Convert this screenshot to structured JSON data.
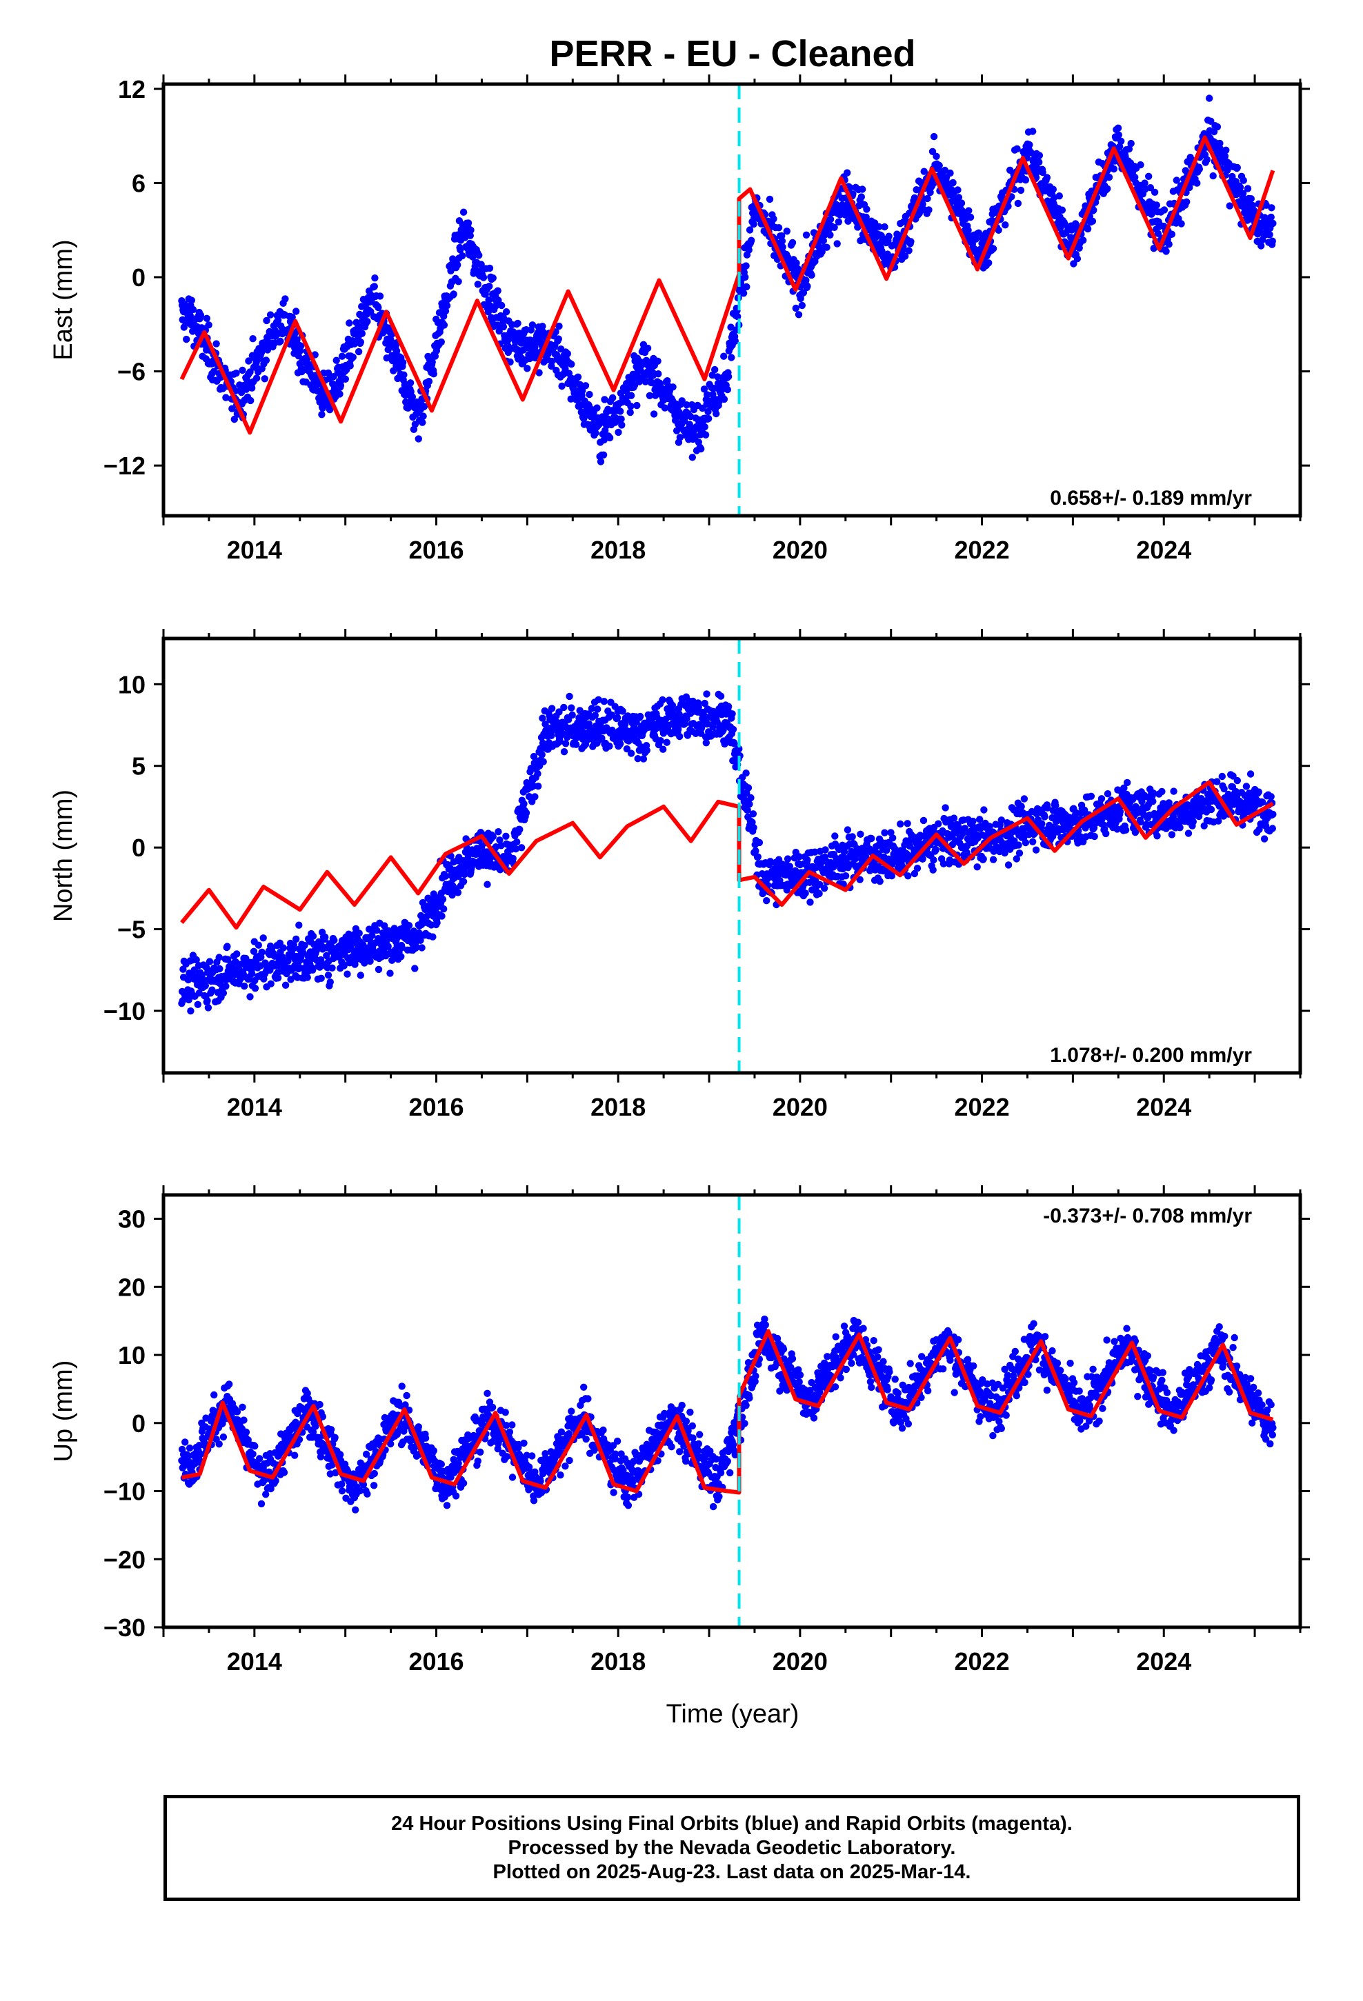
{
  "title": "PERR  - EU - Cleaned",
  "xlabel": "Time (year)",
  "colors": {
    "points": "#0000ff",
    "model": "#ff0000",
    "offset_line": "#00e5ee",
    "frame": "#000000"
  },
  "footer": {
    "line1": "24 Hour Positions Using Final Orbits (blue) and Rapid Orbits (magenta).",
    "line2": "Processed by the Nevada Geodetic Laboratory.",
    "line3": "Plotted on 2025-Aug-23. Last data on 2025-Mar-14."
  },
  "chart_data": [
    {
      "type": "scatter",
      "panel": "east",
      "ylabel": "East (mm)",
      "xlim": [
        2013.0,
        2025.5
      ],
      "ylim": [
        -15.2,
        12.3
      ],
      "xticks": [
        "2014",
        "2016",
        "2018",
        "2020",
        "2022",
        "2024"
      ],
      "yticks": [
        "12",
        "6",
        "0",
        "−6",
        "−12"
      ],
      "ytick_values": [
        12,
        6,
        0,
        -6,
        -12
      ],
      "rate": "0.658+/- 0.189 mm/yr",
      "rate_position": "bottom-right",
      "offset_epoch": 2019.33,
      "series": [
        {
          "kind": "observations",
          "x_range": [
            2013.2,
            2025.2
          ],
          "x": [
            2013.3,
            2013.8,
            2014.3,
            2014.8,
            2015.3,
            2015.8,
            2016.3,
            2016.8,
            2017.3,
            2017.8,
            2018.3,
            2018.8,
            2019.2,
            2019.5,
            2020.0,
            2020.5,
            2021.0,
            2021.5,
            2022.0,
            2022.5,
            2023.0,
            2023.5,
            2024.0,
            2024.5,
            2025.0
          ],
          "y": [
            -2.5,
            -8.0,
            -2.5,
            -8.0,
            -1.5,
            -9.0,
            3.0,
            -4.0,
            -4.5,
            -10.0,
            -5.5,
            -10.0,
            -6.0,
            4.5,
            -0.5,
            5.5,
            1.0,
            7.0,
            1.5,
            8.0,
            2.0,
            8.5,
            2.5,
            9.0,
            3.5
          ]
        },
        {
          "kind": "model",
          "x": [
            2013.2,
            2013.45,
            2013.95,
            2014.45,
            2014.95,
            2015.45,
            2015.95,
            2016.45,
            2016.95,
            2017.45,
            2017.95,
            2018.45,
            2018.95,
            2019.33,
            2019.33,
            2019.45,
            2019.95,
            2020.45,
            2020.95,
            2021.45,
            2021.95,
            2022.45,
            2022.95,
            2023.45,
            2023.95,
            2024.45,
            2024.95,
            2025.2
          ],
          "y": [
            -6.5,
            -3.5,
            -9.9,
            -2.8,
            -9.2,
            -2.2,
            -8.5,
            -1.5,
            -7.8,
            -0.9,
            -7.2,
            -0.2,
            -6.5,
            0.2,
            5.0,
            5.6,
            -0.8,
            6.3,
            -0.1,
            6.9,
            0.5,
            7.6,
            1.2,
            8.2,
            1.8,
            8.9,
            2.5,
            6.8
          ]
        }
      ]
    },
    {
      "type": "scatter",
      "panel": "north",
      "ylabel": "North (mm)",
      "xlim": [
        2013.0,
        2025.5
      ],
      "ylim": [
        -13.8,
        12.8
      ],
      "xticks": [
        "2014",
        "2016",
        "2018",
        "2020",
        "2022",
        "2024"
      ],
      "yticks": [
        "10",
        "5",
        "0",
        "−5",
        "−10"
      ],
      "ytick_values": [
        10,
        5,
        0,
        -5,
        -10
      ],
      "rate": "1.078+/- 0.200 mm/yr",
      "rate_position": "bottom-right",
      "offset_epoch": 2019.33,
      "series": [
        {
          "kind": "observations",
          "x_range": [
            2013.2,
            2025.2
          ],
          "x": [
            2013.3,
            2013.8,
            2014.3,
            2014.8,
            2015.3,
            2015.8,
            2016.1,
            2016.5,
            2016.8,
            2017.2,
            2017.7,
            2018.2,
            2018.7,
            2019.2,
            2019.6,
            2020.1,
            2020.6,
            2021.1,
            2021.6,
            2022.1,
            2022.6,
            2023.1,
            2023.6,
            2024.1,
            2024.6,
            2025.1
          ],
          "y": [
            -8.5,
            -7.5,
            -7.0,
            -6.5,
            -6.0,
            -5.5,
            -2.0,
            0.0,
            -1.0,
            7.0,
            7.5,
            7.0,
            8.0,
            8.0,
            -2.0,
            -1.5,
            -0.5,
            -0.5,
            0.5,
            0.5,
            1.5,
            1.5,
            2.5,
            2.0,
            3.0,
            2.5
          ]
        },
        {
          "kind": "model",
          "x": [
            2013.2,
            2013.5,
            2013.8,
            2014.1,
            2014.5,
            2014.8,
            2015.1,
            2015.5,
            2015.8,
            2016.1,
            2016.5,
            2016.8,
            2017.1,
            2017.5,
            2017.8,
            2018.1,
            2018.5,
            2018.8,
            2019.1,
            2019.33,
            2019.33,
            2019.5,
            2019.8,
            2020.1,
            2020.5,
            2020.8,
            2021.1,
            2021.5,
            2021.8,
            2022.1,
            2022.5,
            2022.8,
            2023.1,
            2023.5,
            2023.8,
            2024.1,
            2024.5,
            2024.8,
            2025.2
          ],
          "y": [
            -4.6,
            -2.6,
            -4.9,
            -2.4,
            -3.8,
            -1.5,
            -3.5,
            -0.6,
            -2.8,
            -0.4,
            0.7,
            -1.6,
            0.4,
            1.5,
            -0.6,
            1.3,
            2.5,
            0.4,
            2.8,
            2.5,
            -2.0,
            -1.8,
            -3.5,
            -1.5,
            -2.6,
            -0.5,
            -1.7,
            0.8,
            -1.0,
            0.6,
            1.8,
            -0.2,
            1.6,
            3.0,
            0.6,
            2.4,
            4.0,
            1.4,
            2.7
          ]
        }
      ]
    },
    {
      "type": "scatter",
      "panel": "up",
      "ylabel": "Up (mm)",
      "xlim": [
        2013.0,
        2025.5
      ],
      "ylim": [
        -30.0,
        33.5
      ],
      "xticks": [
        "2014",
        "2016",
        "2018",
        "2020",
        "2022",
        "2024"
      ],
      "yticks": [
        "30",
        "20",
        "10",
        "0",
        "−10",
        "−20",
        "−30"
      ],
      "ytick_values": [
        30,
        20,
        10,
        0,
        -10,
        -20,
        -30
      ],
      "rate": "-0.373+/- 0.708 mm/yr",
      "rate_position": "top-right",
      "offset_epoch": 2019.33,
      "series": [
        {
          "kind": "observations",
          "x_range": [
            2013.2,
            2025.2
          ],
          "x": [
            2013.3,
            2013.7,
            2014.1,
            2014.6,
            2015.1,
            2015.6,
            2016.1,
            2016.6,
            2017.1,
            2017.6,
            2018.1,
            2018.6,
            2019.1,
            2019.6,
            2020.1,
            2020.6,
            2021.1,
            2021.6,
            2022.1,
            2022.6,
            2023.1,
            2023.6,
            2024.1,
            2024.6,
            2025.1
          ],
          "y": [
            -6.0,
            3.0,
            -9.0,
            2.0,
            -10.0,
            1.5,
            -9.0,
            1.0,
            -9.0,
            1.0,
            -9.0,
            0.5,
            -9.0,
            13.0,
            3.0,
            13.0,
            2.0,
            12.0,
            1.5,
            12.0,
            1.0,
            11.5,
            1.0,
            11.0,
            0.5
          ]
        },
        {
          "kind": "model",
          "x": [
            2013.2,
            2013.4,
            2013.65,
            2013.95,
            2014.2,
            2014.65,
            2014.95,
            2015.2,
            2015.65,
            2015.95,
            2016.2,
            2016.65,
            2016.95,
            2017.2,
            2017.65,
            2017.95,
            2018.2,
            2018.65,
            2018.95,
            2019.2,
            2019.33,
            2019.33,
            2019.65,
            2019.95,
            2020.2,
            2020.65,
            2020.95,
            2021.2,
            2021.65,
            2021.95,
            2022.2,
            2022.65,
            2022.95,
            2023.2,
            2023.65,
            2023.95,
            2024.2,
            2024.65,
            2024.95,
            2025.2
          ],
          "y": [
            -8.0,
            -7.5,
            3.0,
            -7.0,
            -8.0,
            2.5,
            -7.5,
            -8.5,
            2.0,
            -8.0,
            -9.0,
            1.5,
            -8.5,
            -9.5,
            1.2,
            -9.0,
            -10.0,
            1.0,
            -9.5,
            -10.0,
            -10.2,
            4.0,
            13.5,
            3.5,
            2.5,
            13.0,
            3.0,
            2.0,
            12.5,
            2.5,
            1.5,
            12.0,
            2.0,
            1.0,
            11.8,
            1.8,
            0.8,
            11.5,
            1.5,
            0.5
          ]
        }
      ]
    }
  ]
}
